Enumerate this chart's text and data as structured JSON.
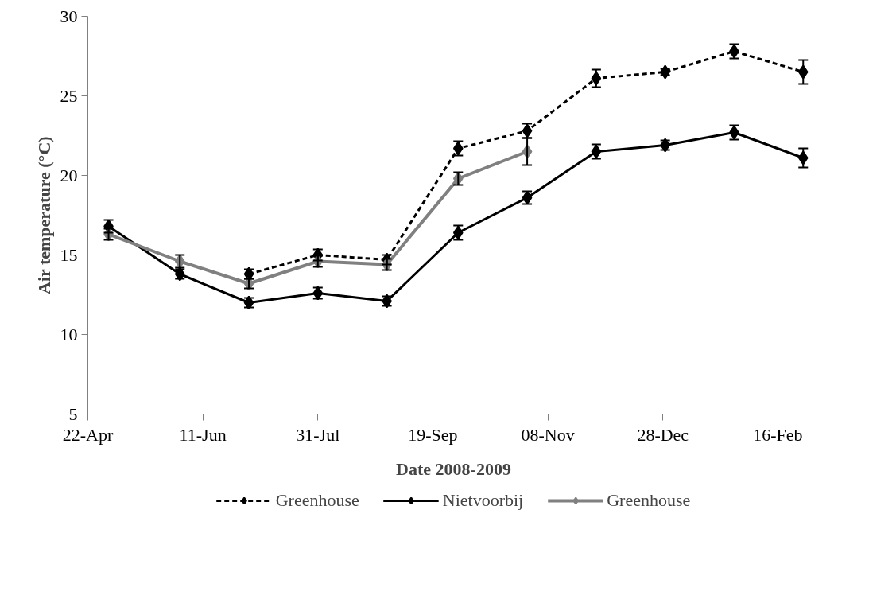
{
  "chart_data": {
    "type": "line",
    "xlabel": "Date 2008-2009",
    "ylabel": "Air temperature (°C)",
    "x": [
      "2008-05-01",
      "2008-06-01",
      "2008-07-01",
      "2008-07-31",
      "2008-08-30",
      "2008-09-30",
      "2008-10-30",
      "2008-11-29",
      "2008-12-29",
      "2009-01-28",
      "2009-02-27"
    ],
    "xlim": [
      "2008-04-22",
      "2009-03-06"
    ],
    "xticks": [
      {
        "value": "2008-04-22",
        "label": "22-Apr"
      },
      {
        "value": "2008-06-11",
        "label": "11-Jun"
      },
      {
        "value": "2008-07-31",
        "label": "31-Jul"
      },
      {
        "value": "2008-09-19",
        "label": "19-Sep"
      },
      {
        "value": "2008-11-08",
        "label": "08-Nov"
      },
      {
        "value": "2008-12-28",
        "label": "28-Dec"
      },
      {
        "value": "2009-02-16",
        "label": "16-Feb"
      }
    ],
    "ylim": [
      5,
      30
    ],
    "yticks": [
      5,
      10,
      15,
      20,
      25,
      30
    ],
    "grid": false,
    "legend": "bottom",
    "marker": "diamond",
    "series": [
      {
        "name": "Greenhouse",
        "color": "#000000",
        "line_style": "dashed",
        "values": [
          null,
          null,
          13.8,
          15.0,
          14.7,
          21.7,
          22.8,
          26.1,
          26.5,
          27.8,
          26.5
        ],
        "errors": [
          null,
          null,
          0.3,
          0.35,
          0.3,
          0.45,
          0.45,
          0.55,
          0.2,
          0.45,
          0.75
        ]
      },
      {
        "name": "Nietvoorbij",
        "color": "#000000",
        "line_style": "solid",
        "values": [
          16.8,
          13.8,
          12.0,
          12.6,
          12.1,
          16.4,
          18.6,
          21.5,
          21.9,
          22.7,
          21.1
        ],
        "errors": [
          0.4,
          0.3,
          0.3,
          0.35,
          0.3,
          0.45,
          0.4,
          0.45,
          0.3,
          0.45,
          0.6
        ]
      },
      {
        "name": "Greenhouse",
        "color": "#808080",
        "line_style": "solid",
        "values": [
          16.3,
          14.6,
          13.2,
          14.6,
          14.4,
          19.8,
          21.5,
          null,
          null,
          null,
          null
        ],
        "errors": [
          0.35,
          0.4,
          0.3,
          0.35,
          0.35,
          0.4,
          0.85,
          null,
          null,
          null,
          null
        ]
      }
    ]
  }
}
